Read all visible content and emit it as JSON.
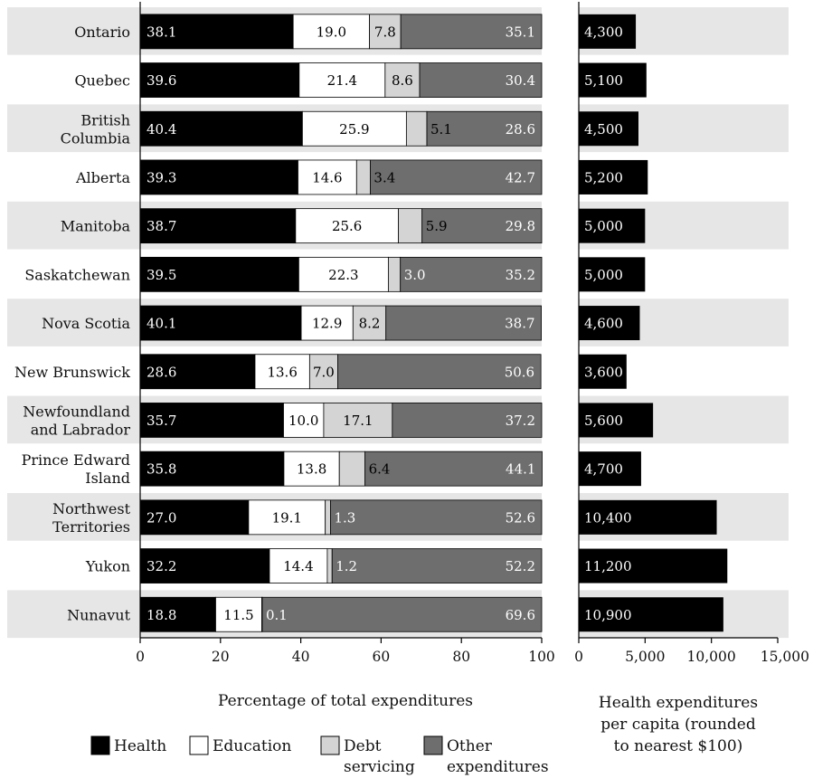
{
  "chart_data": [
    {
      "type": "bar",
      "stacked": true,
      "orientation": "horizontal",
      "categories": [
        "Ontario",
        "Quebec",
        "British Columbia",
        "Alberta",
        "Manitoba",
        "Saskatchewan",
        "Nova Scotia",
        "New Brunswick",
        "Newfoundland and Labrador",
        "Prince Edward Island",
        "Northwest Territories",
        "Yukon",
        "Nunavut"
      ],
      "category_lines": [
        [
          "Ontario"
        ],
        [
          "Quebec"
        ],
        [
          "British",
          "Columbia"
        ],
        [
          "Alberta"
        ],
        [
          "Manitoba"
        ],
        [
          "Saskatchewan"
        ],
        [
          "Nova Scotia"
        ],
        [
          "New Brunswick"
        ],
        [
          "Newfoundland",
          "and Labrador"
        ],
        [
          "Prince Edward",
          "Island"
        ],
        [
          "Northwest",
          "Territories"
        ],
        [
          "Yukon"
        ],
        [
          "Nunavut"
        ]
      ],
      "series": [
        {
          "name": "Health",
          "color": "#000000",
          "values": [
            38.1,
            39.6,
            40.4,
            39.3,
            38.7,
            39.5,
            40.1,
            28.6,
            35.7,
            35.8,
            27.0,
            32.2,
            18.8
          ],
          "labels": [
            "38.1",
            "39.6",
            "40.4",
            "39.3",
            "38.7",
            "39.5",
            "40.1",
            "28.6",
            "35.7",
            "35.8",
            "27.0",
            "32.2",
            "18.8"
          ]
        },
        {
          "name": "Education",
          "color": "#ffffff",
          "values": [
            19.0,
            21.4,
            25.9,
            14.6,
            25.6,
            22.3,
            12.9,
            13.6,
            10.0,
            13.8,
            19.1,
            14.4,
            11.5
          ],
          "labels": [
            "19.0",
            "21.4",
            "25.9",
            "14.6",
            "25.6",
            "22.3",
            "12.9",
            "13.6",
            "10.0",
            "13.8",
            "19.1",
            "14.4",
            "11.5"
          ]
        },
        {
          "name": "Debt servicing",
          "legend_lines": [
            "Debt",
            "servicing"
          ],
          "color": "#d4d4d4",
          "values": [
            7.8,
            8.6,
            5.1,
            3.4,
            5.9,
            3.0,
            8.2,
            7.0,
            17.1,
            6.4,
            1.3,
            1.2,
            0.1
          ],
          "labels": [
            "7.8",
            "8.6",
            "5.1",
            "3.4",
            "5.9",
            "3.0",
            "8.2",
            "7.0",
            "17.1",
            "6.4",
            "1.3",
            "1.2",
            "0.1"
          ]
        },
        {
          "name": "Other expenditures",
          "legend_lines": [
            "Other",
            "expenditures"
          ],
          "color": "#6e6e6e",
          "values": [
            35.1,
            30.4,
            28.6,
            42.7,
            29.8,
            35.2,
            38.7,
            50.6,
            37.2,
            44.1,
            52.6,
            52.2,
            69.6
          ],
          "labels": [
            "35.1",
            "30.4",
            "28.6",
            "42.7",
            "29.8",
            "35.2",
            "38.7",
            "50.6",
            "37.2",
            "44.1",
            "52.6",
            "52.2",
            "69.6"
          ]
        }
      ],
      "xlim": [
        0,
        100
      ],
      "xticks": [
        0,
        20,
        40,
        60,
        80,
        100
      ],
      "xtick_labels": [
        "0",
        "20",
        "40",
        "60",
        "80",
        "100"
      ],
      "xlabel": "Percentage of total expenditures",
      "legend_position": "bottom",
      "row_banding": "alternating light gray"
    },
    {
      "type": "bar",
      "orientation": "horizontal",
      "categories": [
        "Ontario",
        "Quebec",
        "British Columbia",
        "Alberta",
        "Manitoba",
        "Saskatchewan",
        "Nova Scotia",
        "New Brunswick",
        "Newfoundland and Labrador",
        "Prince Edward Island",
        "Northwest Territories",
        "Yukon",
        "Nunavut"
      ],
      "values": [
        4300,
        5100,
        4500,
        5200,
        5000,
        5000,
        4600,
        3600,
        5600,
        4700,
        10400,
        11200,
        10900
      ],
      "value_labels": [
        "4,300",
        "5,100",
        "4,500",
        "5,200",
        "5,000",
        "5,000",
        "4,600",
        "3,600",
        "5,600",
        "4,700",
        "10,400",
        "11,200",
        "10,900"
      ],
      "color": "#000000",
      "xlim": [
        0,
        15000
      ],
      "xticks": [
        0,
        5000,
        10000,
        15000
      ],
      "xtick_labels": [
        "0",
        "5,000",
        "10,000",
        "15,000"
      ],
      "xlabel_lines": [
        "Health expenditures",
        "per capita (rounded",
        "to nearest $100)"
      ]
    }
  ]
}
